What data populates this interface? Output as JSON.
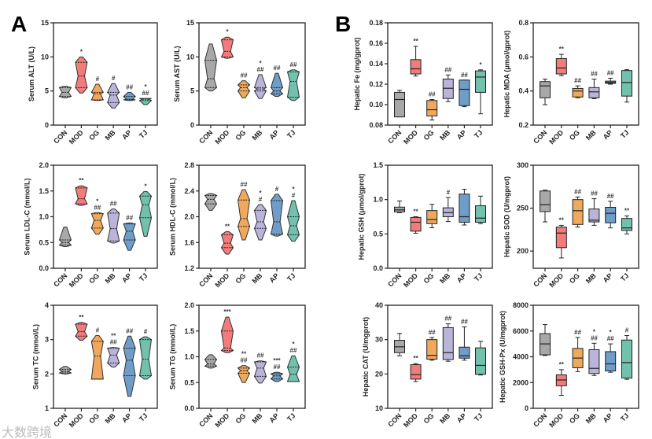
{
  "figure": {
    "panel_letters": [
      "A",
      "B"
    ],
    "watermark": "大数跨境"
  },
  "groups": [
    "CON",
    "MOD",
    "OG",
    "MB",
    "AP",
    "TJ"
  ],
  "colors": {
    "CON": "#a8a8a8",
    "MOD": "#f27c7c",
    "OG": "#f0a95c",
    "MB": "#bab4da",
    "AP": "#6f9dc7",
    "TJ": "#72c1ad"
  },
  "chart_data": [
    {
      "type": "violin",
      "title": "",
      "ylabel": "Serum ALT (U/L)",
      "ylim": [
        0,
        15
      ],
      "yticks": [
        "0",
        "5",
        "10",
        "15"
      ],
      "ytick_values": [
        0,
        5,
        10,
        15
      ],
      "stats": [
        [
          4.0,
          4.2,
          4.8,
          5.5,
          5.7
        ],
        [
          4.7,
          5.5,
          7.2,
          9.2,
          10.0
        ],
        [
          3.6,
          3.7,
          4.6,
          4.8,
          6.0
        ],
        [
          2.5,
          3.3,
          4.4,
          4.8,
          6.1
        ],
        [
          3.6,
          3.7,
          3.8,
          4.2,
          4.8
        ],
        [
          3.0,
          3.6,
          3.8,
          3.9,
          3.9
        ]
      ],
      "sig": [
        [],
        [
          "*"
        ],
        [
          "#"
        ],
        [
          "#"
        ],
        [
          "##"
        ],
        [
          "*",
          "##"
        ]
      ]
    },
    {
      "type": "violin",
      "ylabel": "Serum AST (U/L)",
      "ylim": [
        0,
        15
      ],
      "yticks": [
        "0",
        "5",
        "10",
        "15"
      ],
      "ytick_values": [
        0,
        5,
        10,
        15
      ],
      "stats": [
        [
          5.0,
          5.5,
          6.8,
          9.5,
          11.9
        ],
        [
          9.8,
          10.0,
          10.8,
          12.5,
          12.9
        ],
        [
          4.0,
          5.0,
          5.5,
          5.9,
          6.5
        ],
        [
          3.9,
          5.0,
          5.3,
          5.5,
          7.4
        ],
        [
          4.2,
          4.6,
          5.0,
          5.5,
          7.6
        ],
        [
          3.6,
          4.1,
          6.4,
          7.8,
          8.1
        ]
      ],
      "sig": [
        [],
        [
          "*"
        ],
        [
          "##"
        ],
        [
          "*",
          "##"
        ],
        [
          "##"
        ],
        [
          "##"
        ]
      ]
    },
    {
      "type": "box",
      "ylabel": "Hepatic Fe (mg/gprot)",
      "ylim": [
        0.08,
        0.18
      ],
      "yticks": [
        "0.08",
        "0.10",
        "0.12",
        "0.14",
        "0.16",
        "0.18"
      ],
      "ytick_values": [
        0.08,
        0.1,
        0.12,
        0.14,
        0.16,
        0.18
      ],
      "stats": [
        [
          0.088,
          0.088,
          0.105,
          0.112,
          0.114
        ],
        [
          0.128,
          0.13,
          0.135,
          0.144,
          0.157
        ],
        [
          0.085,
          0.089,
          0.095,
          0.104,
          0.105
        ],
        [
          0.103,
          0.106,
          0.116,
          0.125,
          0.129
        ],
        [
          0.098,
          0.099,
          0.115,
          0.124,
          0.124
        ],
        [
          0.091,
          0.112,
          0.127,
          0.133,
          0.134
        ]
      ],
      "sig": [
        [],
        [
          "**"
        ],
        [
          "##"
        ],
        [
          "##"
        ],
        [
          "##"
        ],
        [
          "*"
        ]
      ]
    },
    {
      "type": "box",
      "ylabel": "Hepatic MDA (μmol/gprot)",
      "ylim": [
        0.2,
        0.8
      ],
      "yticks": [
        "0.2",
        "0.4",
        "0.6",
        "0.8"
      ],
      "ytick_values": [
        0.2,
        0.4,
        0.6,
        0.8
      ],
      "stats": [
        [
          0.32,
          0.36,
          0.43,
          0.455,
          0.47
        ],
        [
          0.49,
          0.5,
          0.535,
          0.59,
          0.615
        ],
        [
          0.36,
          0.365,
          0.4,
          0.415,
          0.43
        ],
        [
          0.355,
          0.36,
          0.395,
          0.42,
          0.47
        ],
        [
          0.44,
          0.445,
          0.45,
          0.458,
          0.475
        ],
        [
          0.335,
          0.37,
          0.45,
          0.52,
          0.525
        ]
      ],
      "sig": [
        [],
        [
          "**"
        ],
        [
          "##"
        ],
        [
          "##"
        ],
        [
          "##"
        ],
        []
      ]
    },
    {
      "type": "violin",
      "ylabel": "Serum LDL-C (mmol/L)",
      "ylim": [
        0,
        2
      ],
      "yticks": [
        "0.0",
        "0.5",
        "1.0",
        "1.5",
        "2.0"
      ],
      "ytick_values": [
        0,
        0.5,
        1.0,
        1.5,
        2.0
      ],
      "stats": [
        [
          0.42,
          0.45,
          0.5,
          0.55,
          0.8
        ],
        [
          1.22,
          1.25,
          1.35,
          1.56,
          1.6
        ],
        [
          0.66,
          0.78,
          0.93,
          1.06,
          1.08
        ],
        [
          0.49,
          0.53,
          0.77,
          1.07,
          1.15
        ],
        [
          0.35,
          0.55,
          0.72,
          0.86,
          0.88
        ],
        [
          0.62,
          0.98,
          1.23,
          1.4,
          1.49
        ]
      ],
      "sig": [
        [],
        [
          "**"
        ],
        [
          "*",
          "##"
        ],
        [
          "##"
        ],
        [
          "##"
        ],
        [
          "*"
        ]
      ]
    },
    {
      "type": "violin",
      "ylabel": "Serum HDL-C (mmol/L)",
      "ylim": [
        1.2,
        2.8
      ],
      "yticks": [
        "1.2",
        "1.6",
        "2.0",
        "2.4",
        "2.8"
      ],
      "ytick_values": [
        1.2,
        1.6,
        2.0,
        2.4,
        2.8
      ],
      "stats": [
        [
          2.1,
          2.2,
          2.27,
          2.33,
          2.36
        ],
        [
          1.42,
          1.52,
          1.59,
          1.72,
          1.77
        ],
        [
          1.64,
          1.85,
          1.97,
          2.26,
          2.42
        ],
        [
          1.64,
          1.82,
          1.92,
          2.1,
          2.19
        ],
        [
          1.7,
          1.73,
          1.92,
          2.25,
          2.35
        ],
        [
          1.62,
          1.72,
          1.86,
          2.0,
          2.25
        ]
      ],
      "sig": [
        [],
        [
          "**"
        ],
        [
          "##"
        ],
        [
          "*",
          "#"
        ],
        [
          "#"
        ],
        [
          "*",
          "#"
        ]
      ]
    },
    {
      "type": "box",
      "ylabel": "Hepatic GSH (μmol/gprot)",
      "ylim": [
        0,
        1.5
      ],
      "yticks": [
        "0.0",
        "0.5",
        "1.0",
        "1.5"
      ],
      "ytick_values": [
        0,
        0.5,
        1.0,
        1.5
      ],
      "stats": [
        [
          0.81,
          0.82,
          0.85,
          0.89,
          0.98
        ],
        [
          0.51,
          0.54,
          0.67,
          0.74,
          0.75
        ],
        [
          0.59,
          0.65,
          0.71,
          0.84,
          0.93
        ],
        [
          0.68,
          0.75,
          0.81,
          0.88,
          1.03
        ],
        [
          0.63,
          0.67,
          0.75,
          1.08,
          1.15
        ],
        [
          0.65,
          0.67,
          0.73,
          0.91,
          1.05
        ]
      ],
      "sig": [
        [],
        [
          "**"
        ],
        [],
        [
          "#"
        ],
        [],
        []
      ]
    },
    {
      "type": "box",
      "ylabel": "Hepatic SOD (U/mgprot)",
      "ylim": [
        180,
        300
      ],
      "yticks": [
        "200",
        "250",
        "300"
      ],
      "ytick_values": [
        200,
        250,
        300
      ],
      "stats": [
        [
          234,
          246,
          254,
          270,
          271
        ],
        [
          192,
          204,
          221,
          228,
          230
        ],
        [
          228,
          231,
          247,
          260,
          263
        ],
        [
          230,
          234,
          236,
          249,
          261
        ],
        [
          227,
          233,
          244,
          251,
          258
        ],
        [
          220,
          224,
          227,
          238,
          241
        ]
      ],
      "sig": [
        [],
        [
          "**"
        ],
        [
          "##"
        ],
        [
          "##"
        ],
        [
          "##"
        ],
        [
          "**"
        ]
      ]
    },
    {
      "type": "violin",
      "ylabel": "Serum TC (mmol/L)",
      "ylim": [
        1,
        4
      ],
      "yticks": [
        "1",
        "2",
        "3",
        "4"
      ],
      "ytick_values": [
        1,
        2,
        3,
        4
      ],
      "stats": [
        [
          2.0,
          2.03,
          2.07,
          2.13,
          2.22
        ],
        [
          2.98,
          3.1,
          3.23,
          3.45,
          3.5
        ],
        [
          1.85,
          1.85,
          2.52,
          2.95,
          3.12
        ],
        [
          2.2,
          2.32,
          2.55,
          2.75,
          2.77
        ],
        [
          1.35,
          1.95,
          2.4,
          2.75,
          3.1
        ],
        [
          1.85,
          1.95,
          2.43,
          3.0,
          3.08
        ]
      ],
      "sig": [
        [],
        [
          "**"
        ],
        [
          "#"
        ],
        [
          "**",
          "##"
        ],
        [
          "##"
        ],
        [
          "#"
        ]
      ]
    },
    {
      "type": "violin",
      "ylabel": "Serum TG (mmol/L)",
      "ylim": [
        0,
        2
      ],
      "yticks": [
        "0.0",
        "0.5",
        "1.0",
        "1.5",
        "2.0"
      ],
      "ytick_values": [
        0,
        0.5,
        1.0,
        1.5,
        2.0
      ],
      "stats": [
        [
          0.78,
          0.82,
          0.86,
          0.95,
          1.04
        ],
        [
          1.08,
          1.12,
          1.17,
          1.5,
          1.77
        ],
        [
          0.5,
          0.68,
          0.73,
          0.78,
          0.83
        ],
        [
          0.49,
          0.62,
          0.78,
          0.9,
          0.92
        ],
        [
          0.52,
          0.57,
          0.63,
          0.67,
          0.7
        ],
        [
          0.52,
          0.52,
          0.66,
          0.8,
          1.02
        ]
      ],
      "sig": [
        [],
        [
          "***"
        ],
        [
          "**",
          "##"
        ],
        [
          "##"
        ],
        [
          "***",
          "##"
        ],
        [
          "*",
          "##"
        ]
      ]
    },
    {
      "type": "box",
      "ylabel": "Hepatic CAT (U/mgprot)",
      "ylim": [
        10,
        40
      ],
      "yticks": [
        "10",
        "20",
        "30",
        "40"
      ],
      "ytick_values": [
        10,
        20,
        30,
        40
      ],
      "stats": [
        [
          25.3,
          26.2,
          27.9,
          29.8,
          31.8
        ],
        [
          17.8,
          18.5,
          19.8,
          22.7,
          23.0
        ],
        [
          24.0,
          24.3,
          25.4,
          30.0,
          30.6
        ],
        [
          23.7,
          24.2,
          26.2,
          33.5,
          34.6
        ],
        [
          24.0,
          24.6,
          25.3,
          27.8,
          33.7
        ],
        [
          19.7,
          19.9,
          22.5,
          27.6,
          29.5
        ]
      ],
      "sig": [
        [],
        [
          "**"
        ],
        [
          "##"
        ],
        [
          "##"
        ],
        [
          "##"
        ],
        []
      ]
    },
    {
      "type": "box",
      "ylabel": "Hepatic GSH-Px (U/mgprot)",
      "ylim": [
        0,
        8000
      ],
      "yticks": [
        "0",
        "2000",
        "4000",
        "6000",
        "8000"
      ],
      "ytick_values": [
        0,
        2000,
        4000,
        6000,
        8000
      ],
      "stats": [
        [
          4100,
          4150,
          5000,
          5800,
          6500
        ],
        [
          1000,
          1750,
          2200,
          2600,
          3000
        ],
        [
          2850,
          3150,
          3900,
          4650,
          5500
        ],
        [
          2550,
          2700,
          3100,
          4550,
          5050
        ],
        [
          2800,
          2900,
          3450,
          4400,
          5000
        ],
        [
          2250,
          2350,
          3550,
          5300,
          5650
        ]
      ],
      "sig": [
        [],
        [
          "**"
        ],
        [
          "##"
        ],
        [
          "*",
          "##"
        ],
        [
          "*",
          "##"
        ],
        [
          "#"
        ]
      ]
    }
  ]
}
